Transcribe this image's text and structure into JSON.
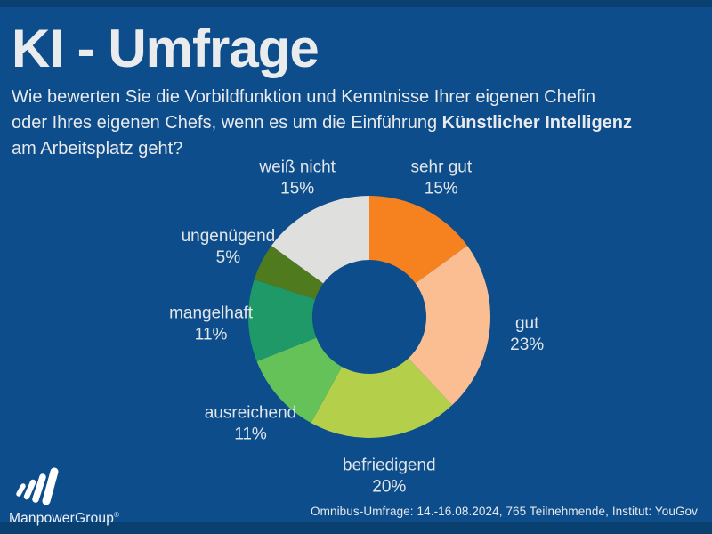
{
  "page": {
    "title": "KI - Umfrage",
    "question": {
      "line1": "Wie bewerten Sie die Vorbildfunktion und Kenntnisse Ihrer eigenen Chefin",
      "line2_prefix": "oder Ihres eigenen Chefs, wenn es um die Einführung ",
      "line2_bold": "Künstlicher Intelligenz",
      "line3": "am Arbeitsplatz geht?"
    },
    "source_note": "Omnibus-Umfrage: 14.-16.08.2024, 765 Teilnehmende, Institut: YouGov",
    "brand": "ManpowerGroup",
    "brand_mark": "®"
  },
  "colors": {
    "background": "#0D4D8C",
    "edge_band": "#0A406F",
    "label_text": "#E3E6E9"
  },
  "chart_data": {
    "type": "pie",
    "subtype": "donut",
    "title": "KI - Umfrage",
    "question": "Wie bewerten Sie die Vorbildfunktion und Kenntnisse Ihrer eigenen Chefin oder Ihres eigenen Chefs, wenn es um die Einführung Künstlicher Intelligenz am Arbeitsplatz geht?",
    "categories": [
      "sehr gut",
      "gut",
      "befriedigend",
      "ausreichend",
      "mangelhaft",
      "ungenügend",
      "weiß nicht"
    ],
    "values": [
      15,
      23,
      20,
      11,
      11,
      5,
      15
    ],
    "unit": "%",
    "colors": [
      "#F6821F",
      "#FBBE92",
      "#B4D04B",
      "#65C258",
      "#1F9968",
      "#4F7A1E",
      "#DFE0DE"
    ],
    "start_angle_deg": 0,
    "direction": "clockwise",
    "labels_position": "outside",
    "legend": "none"
  }
}
